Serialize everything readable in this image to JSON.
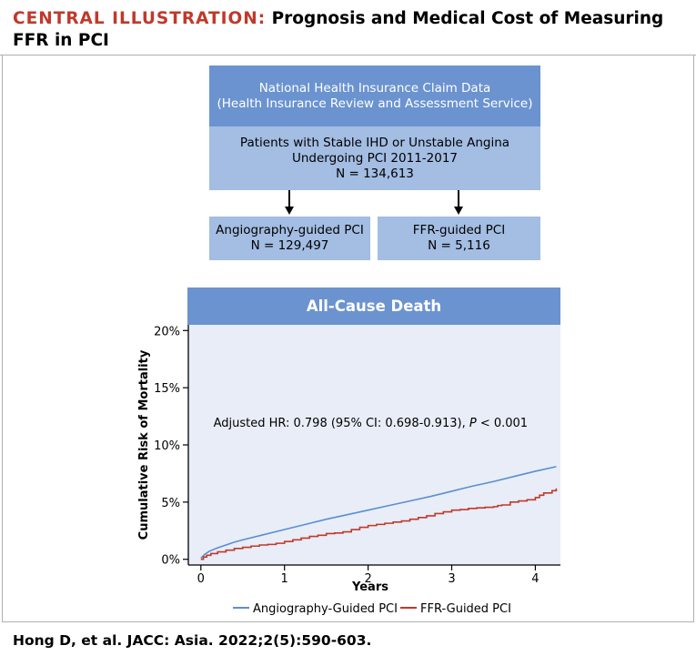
{
  "header": {
    "prefix": "CENTRAL ILLUSTRATION:",
    "title": "Prognosis and Medical Cost of Measuring FFR in PCI"
  },
  "flowchart": {
    "source_line1": "National Health Insurance Claim Data",
    "source_line2": "(Health Insurance Review and Assessment Service)",
    "population_line1": "Patients with Stable IHD or Unstable Angina",
    "population_line2": "Undergoing PCI 2011-2017",
    "population_line3": "N = 134,613",
    "arm_left_line1": "Angiography-guided PCI",
    "arm_left_line2": "N = 129,497",
    "arm_right_line1": "FFR-guided PCI",
    "arm_right_line2": "N = 5,116"
  },
  "panel": {
    "title": "All-Cause Death"
  },
  "chart_data": {
    "type": "line",
    "title": "All-Cause Death",
    "xlabel": "Years",
    "ylabel": "Cumulative Risk of Mortality",
    "xlim": [
      -0.15,
      4.3
    ],
    "ylim": [
      -0.5,
      20.5
    ],
    "xticks": [
      0,
      1,
      2,
      3,
      4
    ],
    "xtick_labels": [
      "0",
      "1",
      "2",
      "3",
      "4"
    ],
    "yticks": [
      0,
      5,
      10,
      15,
      20
    ],
    "ytick_labels": [
      "0%",
      "5%",
      "10%",
      "15%",
      "20%"
    ],
    "annotation": {
      "prefix": "Adjusted HR: 0.798 (95% CI: 0.698-0.913), ",
      "p_symbol": "P",
      "suffix": " < 0.001",
      "x": 0.15,
      "y": 11.6
    },
    "legend_position": "bottom",
    "series": [
      {
        "name": "Angiography-Guided PCI",
        "color": "#5b8fcf",
        "step": false,
        "x": [
          0,
          0.05,
          0.1,
          0.2,
          0.3,
          0.4,
          0.5,
          0.75,
          1.0,
          1.25,
          1.5,
          1.75,
          2.0,
          2.25,
          2.5,
          2.75,
          3.0,
          3.25,
          3.5,
          3.75,
          4.0,
          4.25
        ],
        "values": [
          0.1,
          0.45,
          0.7,
          1.0,
          1.25,
          1.5,
          1.7,
          2.15,
          2.6,
          3.05,
          3.5,
          3.9,
          4.3,
          4.7,
          5.1,
          5.5,
          5.95,
          6.4,
          6.8,
          7.25,
          7.7,
          8.1
        ]
      },
      {
        "name": "FFR-Guided PCI",
        "color": "#c0392b",
        "step": true,
        "x": [
          0,
          0.03,
          0.07,
          0.12,
          0.2,
          0.3,
          0.4,
          0.5,
          0.6,
          0.7,
          0.8,
          0.9,
          1.0,
          1.1,
          1.2,
          1.3,
          1.4,
          1.5,
          1.6,
          1.7,
          1.8,
          1.9,
          2.0,
          2.1,
          2.2,
          2.3,
          2.4,
          2.5,
          2.6,
          2.7,
          2.8,
          2.9,
          3.0,
          3.1,
          3.2,
          3.3,
          3.4,
          3.5,
          3.55,
          3.6,
          3.7,
          3.8,
          3.9,
          4.0,
          4.05,
          4.1,
          4.2,
          4.25
        ],
        "values": [
          0,
          0.2,
          0.35,
          0.5,
          0.65,
          0.8,
          0.95,
          1.05,
          1.15,
          1.25,
          1.3,
          1.4,
          1.55,
          1.7,
          1.85,
          2.0,
          2.1,
          2.25,
          2.3,
          2.4,
          2.6,
          2.8,
          2.95,
          3.05,
          3.15,
          3.25,
          3.35,
          3.5,
          3.65,
          3.8,
          4.0,
          4.15,
          4.3,
          4.35,
          4.45,
          4.5,
          4.55,
          4.6,
          4.7,
          4.75,
          5.0,
          5.1,
          5.2,
          5.4,
          5.6,
          5.8,
          6.0,
          6.2
        ]
      }
    ]
  },
  "citation": "Hong D, et al. JACC: Asia. 2022;2(5):590-603."
}
